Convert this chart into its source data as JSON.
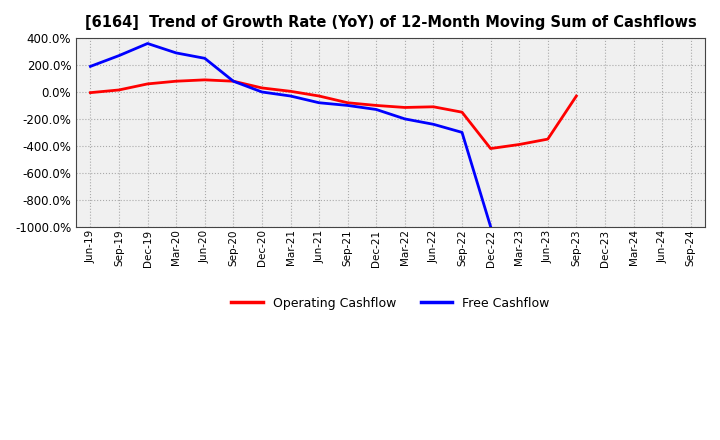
{
  "title": "[6164]  Trend of Growth Rate (YoY) of 12-Month Moving Sum of Cashflows",
  "x_labels": [
    "Jun-19",
    "Sep-19",
    "Dec-19",
    "Mar-20",
    "Jun-20",
    "Sep-20",
    "Dec-20",
    "Mar-21",
    "Jun-21",
    "Sep-21",
    "Dec-21",
    "Mar-22",
    "Jun-22",
    "Sep-22",
    "Dec-22",
    "Mar-23",
    "Jun-23",
    "Sep-23",
    "Dec-23",
    "Mar-24",
    "Jun-24",
    "Sep-24"
  ],
  "operating_cf": [
    -5,
    15,
    60,
    80,
    90,
    80,
    30,
    5,
    -30,
    -80,
    -100,
    -115,
    -110,
    -150,
    -420,
    -390,
    -350,
    -30,
    null,
    null,
    null,
    null
  ],
  "free_cf": [
    190,
    270,
    360,
    290,
    250,
    80,
    0,
    -30,
    -80,
    -100,
    -130,
    -200,
    -240,
    -300,
    -1000,
    null,
    null,
    null,
    null,
    null,
    null,
    null
  ],
  "ylim": [
    -1000,
    400
  ],
  "yticks": [
    -1000,
    -800,
    -600,
    -400,
    -200,
    0,
    200,
    400
  ],
  "operating_color": "#ff0000",
  "free_color": "#0000ff",
  "figure_facecolor": "#ffffff",
  "axes_facecolor": "#f0f0f0",
  "grid_color": "#aaaaaa",
  "spine_color": "#444444",
  "legend_labels": [
    "Operating Cashflow",
    "Free Cashflow"
  ]
}
